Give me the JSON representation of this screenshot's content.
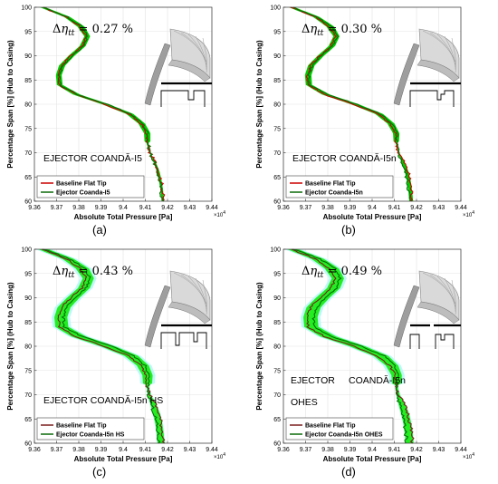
{
  "chart_data": [
    {
      "type": "line",
      "panel_label": "(a)",
      "annotation": "Δη_tt = 0.27 %",
      "delta_value": "0.27 %",
      "config_label": [
        "EJECTOR COANDĂ-I5"
      ],
      "xlabel": "Absolute Total Pressure [Pa]",
      "ylabel": "Percentage Span [%] (Hub to Casing)",
      "x_exponent": "×10^4",
      "xlim": [
        9.36,
        9.44
      ],
      "ylim": [
        60,
        100
      ],
      "x_ticks": [
        "9.36",
        "9.37",
        "9.38",
        "9.39",
        "9.4",
        "9.41",
        "9.42",
        "9.43",
        "9.44"
      ],
      "y_ticks": [
        "60",
        "65",
        "70",
        "75",
        "80",
        "85",
        "90",
        "95",
        "100"
      ],
      "grid": true,
      "legend_position": "bottom-left",
      "band_color": "#00cc00",
      "series": [
        {
          "name": "Baseline Flat Tip",
          "color": "#cc0000",
          "y": [
            100,
            98,
            96,
            94,
            92,
            90,
            88,
            86,
            84,
            82,
            80,
            78,
            76,
            74,
            72,
            70,
            68,
            66,
            64,
            62,
            60
          ],
          "x": [
            9.3635,
            9.3745,
            9.3805,
            9.3836,
            9.3815,
            9.3765,
            9.3722,
            9.3708,
            9.3712,
            9.3785,
            9.3915,
            9.4025,
            9.408,
            9.4105,
            9.4108,
            9.412,
            9.4145,
            9.4162,
            9.4172,
            9.4178,
            9.4182
          ]
        },
        {
          "name": "Ejector Coanda-I5",
          "color": "#0a6b0a",
          "y": [
            100,
            98,
            96,
            94,
            92,
            90,
            88,
            86,
            84,
            82,
            80,
            78,
            76,
            74,
            72,
            70,
            68,
            66,
            64,
            62,
            60
          ],
          "x": [
            9.3638,
            9.375,
            9.3815,
            9.384,
            9.382,
            9.377,
            9.3728,
            9.3712,
            9.3716,
            9.3795,
            9.3925,
            9.4035,
            9.4088,
            9.4112,
            9.4112,
            9.4122,
            9.414,
            9.4155,
            9.4165,
            9.4172,
            9.4176
          ]
        }
      ]
    },
    {
      "type": "line",
      "panel_label": "(b)",
      "annotation": "Δη_tt = 0.30 %",
      "delta_value": "0.30 %",
      "config_label": [
        "EJECTOR COANDĂ-I5n"
      ],
      "xlabel": "Absolute Total Pressure [Pa]",
      "ylabel": "Percentage Span [%] (Hub to Casing)",
      "x_exponent": "×10^4",
      "xlim": [
        9.36,
        9.44
      ],
      "ylim": [
        60,
        100
      ],
      "x_ticks": [
        "9.36",
        "9.37",
        "9.38",
        "9.39",
        "9.4",
        "9.41",
        "9.42",
        "9.43",
        "9.44"
      ],
      "y_ticks": [
        "60",
        "65",
        "70",
        "75",
        "80",
        "85",
        "90",
        "95",
        "100"
      ],
      "grid": true,
      "legend_position": "bottom-left",
      "band_color": "#00cc00",
      "series": [
        {
          "name": "Baseline Flat Tip",
          "color": "#cc0000",
          "y": [
            100,
            98,
            96,
            94,
            92,
            90,
            88,
            86,
            84,
            82,
            80,
            78,
            76,
            74,
            72,
            70,
            68,
            66,
            64,
            62,
            60
          ],
          "x": [
            9.3635,
            9.3745,
            9.3805,
            9.3836,
            9.3815,
            9.3765,
            9.3722,
            9.3708,
            9.3712,
            9.3785,
            9.3915,
            9.4025,
            9.408,
            9.4105,
            9.4108,
            9.412,
            9.4145,
            9.4162,
            9.4172,
            9.4178,
            9.4182
          ]
        },
        {
          "name": "Ejector Coanda-I5n",
          "color": "#0a6b0a",
          "y": [
            100,
            98,
            96,
            94,
            92,
            90,
            88,
            86,
            84,
            82,
            80,
            78,
            76,
            74,
            72,
            70,
            68,
            66,
            64,
            62,
            60
          ],
          "x": [
            9.364,
            9.3752,
            9.3818,
            9.3842,
            9.3822,
            9.3772,
            9.373,
            9.3715,
            9.3718,
            9.3798,
            9.3928,
            9.4038,
            9.409,
            9.4112,
            9.411,
            9.4118,
            9.4135,
            9.415,
            9.416,
            9.4166,
            9.417
          ]
        }
      ]
    },
    {
      "type": "line",
      "panel_label": "(c)",
      "annotation": "Δη_tt = 0.43 %",
      "delta_value": "0.43 %",
      "config_label": [
        "EJECTOR COANDĂ-I5n    HS"
      ],
      "xlabel": "Absolute Total Pressure [Pa]",
      "ylabel": "Percentage Span [%] (Hub to Casing)",
      "x_exponent": "×10^4",
      "xlim": [
        9.36,
        9.44
      ],
      "ylim": [
        60,
        100
      ],
      "x_ticks": [
        "9.36",
        "9.37",
        "9.38",
        "9.39",
        "9.4",
        "9.41",
        "9.42",
        "9.43",
        "9.44"
      ],
      "y_ticks": [
        "60",
        "65",
        "70",
        "75",
        "80",
        "85",
        "90",
        "95",
        "100"
      ],
      "grid": true,
      "legend_position": "bottom-left",
      "band_color": "#22ee22",
      "series": [
        {
          "name": "Baseline Flat Tip",
          "color": "#7a1e1e",
          "y": [
            100,
            98,
            96,
            94,
            92,
            90,
            88,
            86,
            84,
            82,
            80,
            78,
            76,
            74,
            72,
            70,
            68,
            66,
            64,
            62,
            60
          ],
          "x": [
            9.3635,
            9.3745,
            9.3805,
            9.3836,
            9.3815,
            9.3765,
            9.3722,
            9.3708,
            9.3712,
            9.3785,
            9.3915,
            9.4025,
            9.408,
            9.4105,
            9.4108,
            9.412,
            9.4145,
            9.4162,
            9.4172,
            9.4178,
            9.4182
          ]
        },
        {
          "name": "Ejector Coanda-I5n HS",
          "color": "#0a6b0a",
          "y": [
            100,
            98,
            96,
            94,
            92,
            90,
            88,
            86,
            84,
            82,
            80,
            78,
            76,
            74,
            72,
            70,
            68,
            66,
            64,
            62,
            60
          ],
          "x": [
            9.3645,
            9.376,
            9.3828,
            9.385,
            9.3832,
            9.3785,
            9.3745,
            9.373,
            9.3735,
            9.3815,
            9.3945,
            9.405,
            9.4098,
            9.4115,
            9.4112,
            9.4115,
            9.4128,
            9.414,
            9.415,
            9.4156,
            9.416
          ]
        }
      ]
    },
    {
      "type": "line",
      "panel_label": "(d)",
      "annotation": "Δη_tt = 0.49 %",
      "delta_value": "0.49 %",
      "config_label": [
        "EJECTOR",
        "COANDĂ-I5n",
        "OHES"
      ],
      "xlabel": "Absolute Total Pressure [Pa]",
      "ylabel": "Percentage Span [%] (Hub to Casing)",
      "x_exponent": "×10^4",
      "xlim": [
        9.36,
        9.44
      ],
      "ylim": [
        60,
        100
      ],
      "x_ticks": [
        "9.36",
        "9.37",
        "9.38",
        "9.39",
        "9.4",
        "9.41",
        "9.42",
        "9.43",
        "9.44"
      ],
      "y_ticks": [
        "60",
        "65",
        "70",
        "75",
        "80",
        "85",
        "90",
        "95",
        "100"
      ],
      "grid": true,
      "legend_position": "bottom-left",
      "band_color": "#22ee22",
      "series": [
        {
          "name": "Baseline Flat Tip",
          "color": "#7a1e1e",
          "y": [
            100,
            98,
            96,
            94,
            92,
            90,
            88,
            86,
            84,
            82,
            80,
            78,
            76,
            74,
            72,
            70,
            68,
            66,
            64,
            62,
            60
          ],
          "x": [
            9.3635,
            9.3745,
            9.3805,
            9.3836,
            9.3815,
            9.3765,
            9.3722,
            9.3708,
            9.3712,
            9.3785,
            9.3915,
            9.4025,
            9.408,
            9.4105,
            9.4108,
            9.412,
            9.4145,
            9.4162,
            9.4172,
            9.4178,
            9.4182
          ]
        },
        {
          "name": "Ejector Coanda-I5n OHES",
          "color": "#0a6b0a",
          "y": [
            100,
            98,
            96,
            94,
            92,
            90,
            88,
            86,
            84,
            82,
            80,
            78,
            76,
            74,
            72,
            70,
            68,
            66,
            64,
            62,
            60
          ],
          "x": [
            9.3648,
            9.3765,
            9.3832,
            9.3855,
            9.3838,
            9.379,
            9.375,
            9.3736,
            9.374,
            9.382,
            9.395,
            9.4055,
            9.41,
            9.4116,
            9.4112,
            9.4114,
            9.4124,
            9.4136,
            9.4146,
            9.4152,
            9.4156
          ]
        }
      ]
    }
  ]
}
